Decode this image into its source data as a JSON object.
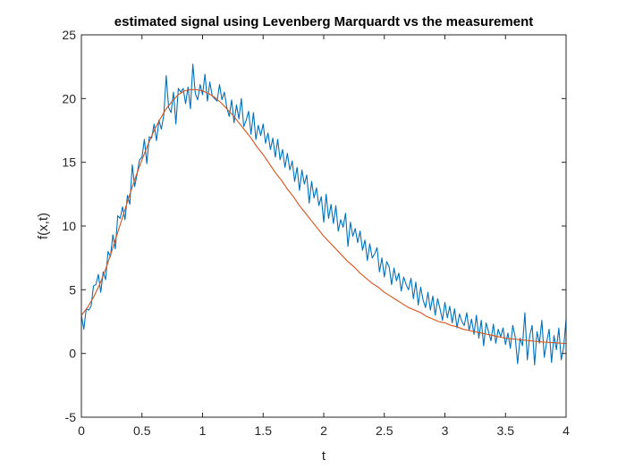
{
  "chart_data": {
    "type": "line",
    "title": "estimated signal using Levenberg Marquardt vs the measurement",
    "xlabel": "t",
    "ylabel": "f(x,t)",
    "xlim": [
      0,
      4
    ],
    "ylim": [
      -5,
      25
    ],
    "xticks": [
      0,
      0.5,
      1,
      1.5,
      2,
      2.5,
      3,
      3.5,
      4
    ],
    "xtick_labels": [
      "0",
      "0.5",
      "1",
      "1.5",
      "2",
      "2.5",
      "3",
      "3.5",
      "4"
    ],
    "yticks": [
      -5,
      0,
      5,
      10,
      15,
      20,
      25
    ],
    "ytick_labels": [
      "-5",
      "0",
      "5",
      "10",
      "15",
      "20",
      "25"
    ],
    "grid": false,
    "box": true,
    "series": [
      {
        "color": "#0072BD",
        "x": [
          0,
          0.02,
          0.04,
          0.06,
          0.08,
          0.1,
          0.12,
          0.14,
          0.16,
          0.18,
          0.2,
          0.22,
          0.24,
          0.26,
          0.28,
          0.3,
          0.32,
          0.34,
          0.36,
          0.38,
          0.4,
          0.42,
          0.44,
          0.46,
          0.48,
          0.5,
          0.52,
          0.54,
          0.56,
          0.58,
          0.6,
          0.62,
          0.64,
          0.66,
          0.68,
          0.7,
          0.72,
          0.74,
          0.76,
          0.78,
          0.8,
          0.82,
          0.84,
          0.86,
          0.88,
          0.9,
          0.92,
          0.94,
          0.96,
          0.98,
          1.0,
          1.02,
          1.04,
          1.06,
          1.08,
          1.1,
          1.12,
          1.14,
          1.16,
          1.18,
          1.2,
          1.22,
          1.24,
          1.26,
          1.28,
          1.3,
          1.32,
          1.34,
          1.36,
          1.38,
          1.4,
          1.42,
          1.44,
          1.46,
          1.48,
          1.5,
          1.52,
          1.54,
          1.56,
          1.58,
          1.6,
          1.62,
          1.64,
          1.66,
          1.68,
          1.7,
          1.72,
          1.74,
          1.76,
          1.78,
          1.8,
          1.82,
          1.84,
          1.86,
          1.88,
          1.9,
          1.92,
          1.94,
          1.96,
          1.98,
          2.0,
          2.02,
          2.04,
          2.06,
          2.08,
          2.1,
          2.12,
          2.14,
          2.16,
          2.18,
          2.2,
          2.22,
          2.24,
          2.26,
          2.28,
          2.3,
          2.32,
          2.34,
          2.36,
          2.38,
          2.4,
          2.42,
          2.44,
          2.46,
          2.48,
          2.5,
          2.52,
          2.54,
          2.56,
          2.58,
          2.6,
          2.62,
          2.64,
          2.66,
          2.68,
          2.7,
          2.72,
          2.74,
          2.76,
          2.78,
          2.8,
          2.82,
          2.84,
          2.86,
          2.88,
          2.9,
          2.92,
          2.94,
          2.96,
          2.98,
          3.0,
          3.02,
          3.04,
          3.06,
          3.08,
          3.1,
          3.12,
          3.14,
          3.16,
          3.18,
          3.2,
          3.22,
          3.24,
          3.26,
          3.28,
          3.3,
          3.32,
          3.34,
          3.36,
          3.38,
          3.4,
          3.42,
          3.44,
          3.46,
          3.48,
          3.5,
          3.52,
          3.54,
          3.56,
          3.58,
          3.6,
          3.62,
          3.64,
          3.66,
          3.68,
          3.7,
          3.72,
          3.74,
          3.76,
          3.78,
          3.8,
          3.82,
          3.84,
          3.86,
          3.88,
          3.9,
          3.92,
          3.94,
          3.96,
          3.98,
          4.0
        ],
        "y": [
          3.0,
          1.9,
          3.5,
          3.4,
          3.7,
          5.3,
          5.4,
          6.2,
          4.8,
          6.4,
          5.8,
          8.0,
          7.6,
          9.3,
          8.2,
          10.8,
          10.6,
          11.5,
          10.5,
          12.4,
          11.7,
          14.8,
          13.1,
          14.1,
          15.2,
          15.4,
          16.8,
          14.9,
          17.0,
          16.9,
          18.0,
          16.7,
          18.3,
          17.6,
          18.7,
          21.8,
          19.3,
          18.9,
          20.5,
          18.0,
          20.8,
          20.5,
          20.8,
          19.6,
          20.9,
          19.2,
          22.7,
          20.4,
          19.9,
          21.1,
          20.3,
          21.9,
          19.8,
          21.3,
          20.2,
          20.0,
          19.8,
          21.1,
          19.9,
          20.5,
          19.3,
          18.6,
          19.9,
          18.1,
          19.5,
          18.4,
          20.0,
          17.8,
          18.3,
          19.0,
          17.2,
          18.9,
          16.8,
          17.9,
          17.1,
          18.0,
          16.5,
          17.3,
          16.0,
          16.9,
          15.4,
          16.8,
          15.2,
          16.0,
          14.6,
          15.7,
          14.4,
          15.1,
          13.5,
          14.6,
          12.8,
          14.4,
          13.3,
          14.0,
          11.8,
          13.5,
          12.2,
          13.0,
          11.6,
          12.3,
          10.3,
          12.5,
          10.6,
          11.7,
          10.2,
          11.6,
          9.6,
          10.5,
          9.9,
          11.0,
          8.4,
          10.3,
          9.2,
          9.8,
          8.7,
          9.6,
          8.1,
          8.9,
          7.3,
          8.6,
          7.5,
          7.8,
          8.3,
          6.4,
          7.5,
          6.0,
          7.2,
          6.8,
          5.4,
          6.7,
          5.7,
          6.3,
          4.9,
          6.0,
          5.4,
          5.0,
          5.9,
          4.3,
          5.6,
          3.8,
          5.2,
          4.2,
          3.6,
          4.8,
          3.4,
          4.5,
          3.0,
          4.3,
          3.5,
          2.6,
          4.0,
          2.8,
          3.7,
          2.4,
          3.5,
          2.0,
          3.1,
          2.5,
          2.2,
          3.2,
          1.8,
          2.7,
          1.5,
          3.0,
          1.2,
          2.6,
          0.6,
          2.4,
          1.7,
          1.0,
          2.3,
          0.8,
          1.9,
          1.3,
          2.0,
          0.7,
          1.6,
          0.4,
          2.2,
          1.3,
          -0.8,
          1.2,
          0.6,
          3.2,
          -0.5,
          1.4,
          2.2,
          -0.9,
          1.7,
          0.8,
          2.6,
          -0.3,
          0.9,
          1.9,
          -0.7,
          1.4,
          0.3,
          2.0,
          -0.5,
          0.5,
          2.7
        ]
      },
      {
        "color": "#D95319",
        "x": [
          0,
          0.05,
          0.1,
          0.15,
          0.2,
          0.25,
          0.3,
          0.35,
          0.4,
          0.45,
          0.5,
          0.55,
          0.6,
          0.65,
          0.7,
          0.75,
          0.8,
          0.85,
          0.9,
          0.95,
          1.0,
          1.05,
          1.1,
          1.15,
          1.2,
          1.25,
          1.3,
          1.35,
          1.4,
          1.45,
          1.5,
          1.55,
          1.6,
          1.65,
          1.7,
          1.75,
          1.8,
          1.85,
          1.9,
          1.95,
          2.0,
          2.05,
          2.1,
          2.15,
          2.2,
          2.25,
          2.3,
          2.35,
          2.4,
          2.45,
          2.5,
          2.55,
          2.6,
          2.65,
          2.7,
          2.75,
          2.8,
          2.85,
          2.9,
          2.95,
          3.0,
          3.05,
          3.1,
          3.15,
          3.2,
          3.25,
          3.3,
          3.35,
          3.4,
          3.45,
          3.5,
          3.55,
          3.6,
          3.65,
          3.7,
          3.75,
          3.8,
          3.85,
          3.9,
          3.95,
          4.0
        ],
        "y": [
          3.0,
          3.6,
          4.4,
          5.4,
          6.6,
          8.0,
          9.5,
          11.0,
          12.5,
          13.9,
          15.2,
          16.4,
          17.5,
          18.4,
          19.2,
          19.8,
          20.3,
          20.6,
          20.7,
          20.7,
          20.6,
          20.4,
          20.1,
          19.7,
          19.2,
          18.7,
          18.1,
          17.5,
          16.9,
          16.2,
          15.6,
          14.9,
          14.2,
          13.6,
          12.9,
          12.3,
          11.6,
          11.0,
          10.4,
          9.8,
          9.2,
          8.7,
          8.2,
          7.7,
          7.2,
          6.8,
          6.3,
          5.9,
          5.5,
          5.2,
          4.8,
          4.5,
          4.2,
          3.9,
          3.6,
          3.4,
          3.2,
          2.9,
          2.7,
          2.5,
          2.4,
          2.2,
          2.1,
          1.9,
          1.8,
          1.7,
          1.6,
          1.5,
          1.4,
          1.3,
          1.2,
          1.15,
          1.1,
          1.05,
          1.0,
          0.95,
          0.9,
          0.87,
          0.84,
          0.81,
          0.78
        ]
      }
    ]
  }
}
